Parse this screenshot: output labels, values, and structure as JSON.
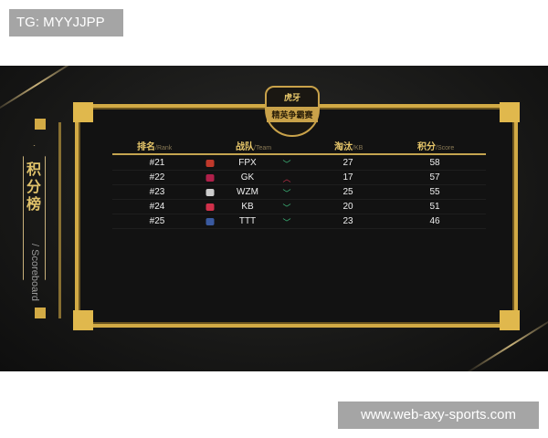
{
  "watermarks": {
    "top_left": "TG: MYYJJPP",
    "bottom_right": "www.web-axy-sports.com"
  },
  "event_logo": {
    "brand": "虎牙",
    "title": "精英争霸赛"
  },
  "side": {
    "title": "积分榜",
    "subtitle": "Scoreboard"
  },
  "headers": [
    {
      "cn": "排名",
      "en": "Rank"
    },
    {
      "cn": "战队",
      "en": "Team"
    },
    {
      "cn": "淘汰",
      "en": "KB"
    },
    {
      "cn": "积分",
      "en": "Score"
    }
  ],
  "rows": [
    {
      "rank": "#21",
      "team": "FPX",
      "trend": "down",
      "kb": "27",
      "score": "58",
      "logo_color": "#c0392b"
    },
    {
      "rank": "#22",
      "team": "GK",
      "trend": "up",
      "kb": "17",
      "score": "57",
      "logo_color": "#b0204a"
    },
    {
      "rank": "#23",
      "team": "WZM",
      "trend": "down",
      "kb": "25",
      "score": "55",
      "logo_color": "#cccccc"
    },
    {
      "rank": "#24",
      "team": "KB",
      "trend": "down",
      "kb": "20",
      "score": "51",
      "logo_color": "#d0304a"
    },
    {
      "rank": "#25",
      "team": "TTT",
      "trend": "down",
      "kb": "23",
      "score": "46",
      "logo_color": "#3a5aa0"
    }
  ],
  "colors": {
    "gold": "#d2aa45",
    "down": "#3fbf7f",
    "up": "#c0304a"
  }
}
